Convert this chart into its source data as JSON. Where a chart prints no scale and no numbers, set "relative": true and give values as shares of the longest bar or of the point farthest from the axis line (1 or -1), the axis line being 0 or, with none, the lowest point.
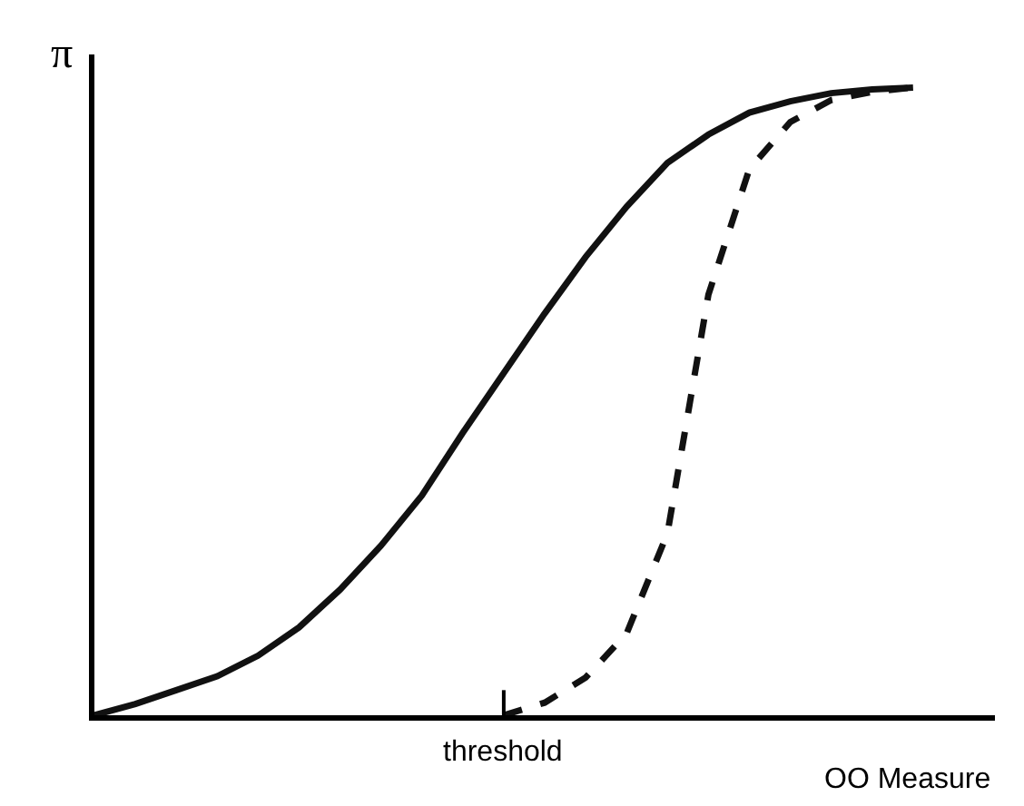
{
  "chart_data": {
    "type": "line",
    "relative": true,
    "xlabel": "OO Measure",
    "ylabel": "π",
    "annotations": [
      "threshold"
    ],
    "categories": [
      null,
      null,
      null,
      null,
      null,
      null,
      null,
      null,
      null,
      null,
      null,
      null,
      null,
      null,
      null,
      null,
      null,
      null,
      null,
      null,
      null
    ],
    "series": [
      {
        "color": "#111111",
        "line_style": "solid",
        "values": [
          0,
          0.018,
          0.04,
          0.062,
          0.095,
          0.14,
          0.2,
          0.27,
          0.35,
          0.45,
          0.545,
          0.64,
          0.73,
          0.81,
          0.88,
          0.925,
          0.96,
          0.978,
          0.991,
          0.997,
          1
        ]
      },
      {
        "color": "#111111",
        "line_style": "dashed",
        "values": [
          null,
          null,
          null,
          null,
          null,
          null,
          null,
          null,
          null,
          null,
          0,
          0.02,
          0.06,
          0.13,
          0.29,
          0.67,
          0.87,
          0.945,
          0.98,
          0.993,
          1
        ]
      }
    ]
  }
}
